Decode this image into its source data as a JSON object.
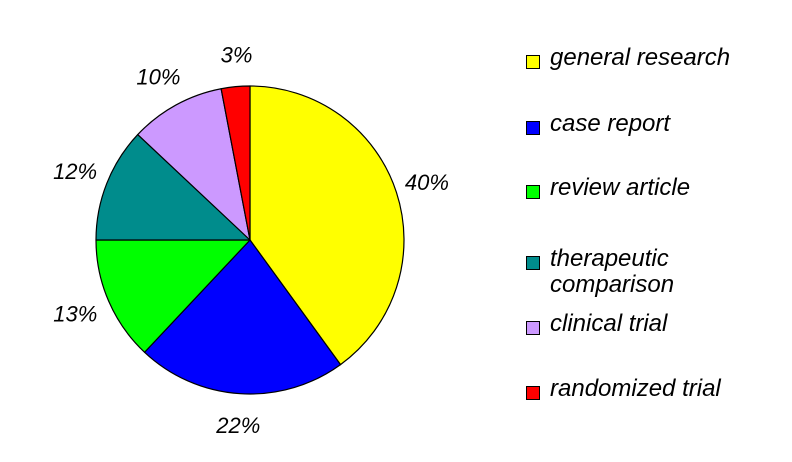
{
  "chart_data": {
    "type": "pie",
    "categories": [
      "general research",
      "case report",
      "review article",
      "therapeutic comparison",
      "clinical trial",
      "randomized trial"
    ],
    "values": [
      40,
      22,
      13,
      12,
      10,
      3
    ],
    "labels": [
      "40%",
      "22%",
      "13%",
      "12%",
      "10%",
      "3%"
    ],
    "colors": [
      "#FFFF00",
      "#0000FF",
      "#00FF00",
      "#008C8C",
      "#CC99FF",
      "#FF0000"
    ],
    "legend": {
      "position": "right",
      "entries": [
        {
          "text": "general research",
          "lines": [
            "general research"
          ],
          "color": "#FFFF00"
        },
        {
          "text": "case report",
          "lines": [
            "case report"
          ],
          "color": "#0000FF"
        },
        {
          "text": "review article",
          "lines": [
            "review article"
          ],
          "color": "#00FF00"
        },
        {
          "text": "therapeutic comparison",
          "lines": [
            "therapeutic",
            "comparison"
          ],
          "color": "#008C8C"
        },
        {
          "text": "clinical trial",
          "lines": [
            "clinical trial"
          ],
          "color": "#CC99FF"
        },
        {
          "text": "randomized trial",
          "lines": [
            "randomized trial"
          ],
          "color": "#FF0000"
        }
      ]
    },
    "start_angle": "12 o'clock",
    "direction": "clockwise"
  }
}
